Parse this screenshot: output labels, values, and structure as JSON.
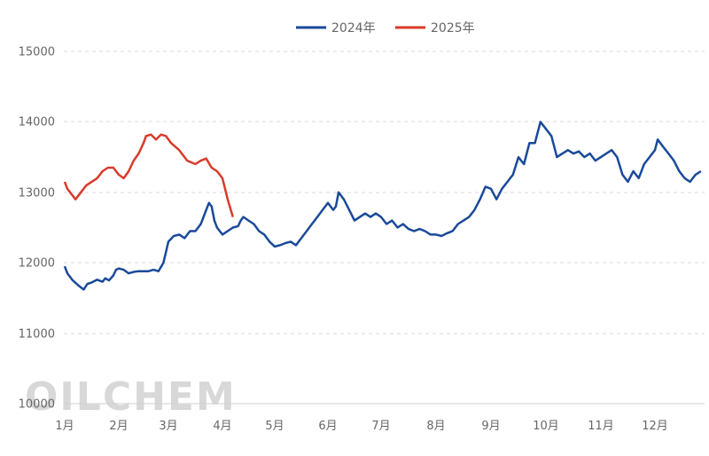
{
  "chart_data": {
    "type": "line",
    "title": "",
    "xlabel": "",
    "ylabel": "",
    "ylim": [
      10000,
      15000
    ],
    "yticks": [
      10000,
      11000,
      12000,
      13000,
      14000,
      15000
    ],
    "months": [
      "1月",
      "2月",
      "3月",
      "4月",
      "5月",
      "6月",
      "7月",
      "8月",
      "9月",
      "10月",
      "11月",
      "12月"
    ],
    "grid": "horizontal dashed",
    "legend_position": "top-center",
    "watermark": "OILCHEM",
    "series": [
      {
        "name": "2024年",
        "color": "#1a4a99",
        "points": [
          [
            1.0,
            11950
          ],
          [
            1.05,
            11850
          ],
          [
            1.15,
            11750
          ],
          [
            1.25,
            11680
          ],
          [
            1.35,
            11620
          ],
          [
            1.42,
            11700
          ],
          [
            1.5,
            11720
          ],
          [
            1.6,
            11760
          ],
          [
            1.7,
            11730
          ],
          [
            1.75,
            11780
          ],
          [
            1.82,
            11750
          ],
          [
            1.9,
            11820
          ],
          [
            1.95,
            11900
          ],
          [
            2.0,
            11920
          ],
          [
            2.1,
            11900
          ],
          [
            2.2,
            11850
          ],
          [
            2.3,
            11870
          ],
          [
            2.4,
            11880
          ],
          [
            2.5,
            11880
          ],
          [
            2.6,
            11880
          ],
          [
            2.7,
            11900
          ],
          [
            2.8,
            11880
          ],
          [
            2.9,
            12000
          ],
          [
            3.0,
            12300
          ],
          [
            3.1,
            12380
          ],
          [
            3.2,
            12400
          ],
          [
            3.3,
            12350
          ],
          [
            3.4,
            12450
          ],
          [
            3.5,
            12450
          ],
          [
            3.6,
            12550
          ],
          [
            3.7,
            12750
          ],
          [
            3.75,
            12850
          ],
          [
            3.8,
            12800
          ],
          [
            3.85,
            12600
          ],
          [
            3.9,
            12500
          ],
          [
            4.0,
            12400
          ],
          [
            4.1,
            12450
          ],
          [
            4.2,
            12500
          ],
          [
            4.3,
            12520
          ],
          [
            4.35,
            12600
          ],
          [
            4.4,
            12650
          ],
          [
            4.5,
            12600
          ],
          [
            4.6,
            12550
          ],
          [
            4.7,
            12450
          ],
          [
            4.8,
            12400
          ],
          [
            4.9,
            12300
          ],
          [
            5.0,
            12230
          ],
          [
            5.1,
            12250
          ],
          [
            5.2,
            12280
          ],
          [
            5.3,
            12300
          ],
          [
            5.4,
            12250
          ],
          [
            5.5,
            12350
          ],
          [
            5.6,
            12450
          ],
          [
            5.7,
            12550
          ],
          [
            5.8,
            12650
          ],
          [
            5.9,
            12750
          ],
          [
            6.0,
            12850
          ],
          [
            6.1,
            12750
          ],
          [
            6.15,
            12800
          ],
          [
            6.2,
            13000
          ],
          [
            6.3,
            12900
          ],
          [
            6.4,
            12750
          ],
          [
            6.5,
            12600
          ],
          [
            6.6,
            12650
          ],
          [
            6.7,
            12700
          ],
          [
            6.8,
            12650
          ],
          [
            6.9,
            12700
          ],
          [
            7.0,
            12650
          ],
          [
            7.1,
            12550
          ],
          [
            7.2,
            12600
          ],
          [
            7.3,
            12500
          ],
          [
            7.4,
            12550
          ],
          [
            7.5,
            12480
          ],
          [
            7.6,
            12450
          ],
          [
            7.7,
            12480
          ],
          [
            7.8,
            12450
          ],
          [
            7.9,
            12400
          ],
          [
            8.0,
            12400
          ],
          [
            8.1,
            12380
          ],
          [
            8.2,
            12420
          ],
          [
            8.3,
            12450
          ],
          [
            8.4,
            12550
          ],
          [
            8.5,
            12600
          ],
          [
            8.6,
            12650
          ],
          [
            8.7,
            12750
          ],
          [
            8.8,
            12900
          ],
          [
            8.9,
            13080
          ],
          [
            9.0,
            13050
          ],
          [
            9.1,
            12900
          ],
          [
            9.2,
            13050
          ],
          [
            9.3,
            13150
          ],
          [
            9.4,
            13250
          ],
          [
            9.5,
            13500
          ],
          [
            9.6,
            13400
          ],
          [
            9.7,
            13700
          ],
          [
            9.8,
            13700
          ],
          [
            9.9,
            14000
          ],
          [
            10.0,
            13900
          ],
          [
            10.1,
            13800
          ],
          [
            10.2,
            13500
          ],
          [
            10.3,
            13550
          ],
          [
            10.4,
            13600
          ],
          [
            10.5,
            13550
          ],
          [
            10.6,
            13580
          ],
          [
            10.7,
            13500
          ],
          [
            10.8,
            13550
          ],
          [
            10.9,
            13450
          ],
          [
            11.0,
            13500
          ],
          [
            11.1,
            13550
          ],
          [
            11.2,
            13600
          ],
          [
            11.3,
            13500
          ],
          [
            11.4,
            13250
          ],
          [
            11.5,
            13150
          ],
          [
            11.6,
            13300
          ],
          [
            11.7,
            13200
          ],
          [
            11.8,
            13400
          ],
          [
            11.9,
            13500
          ],
          [
            12.0,
            13600
          ],
          [
            12.05,
            13750
          ],
          [
            12.15,
            13650
          ],
          [
            12.25,
            13550
          ],
          [
            12.35,
            13450
          ],
          [
            12.45,
            13300
          ],
          [
            12.55,
            13200
          ],
          [
            12.65,
            13150
          ],
          [
            12.75,
            13250
          ],
          [
            12.85,
            13300
          ]
        ]
      },
      {
        "name": "2025年",
        "color": "#d93a2b",
        "points": [
          [
            1.0,
            13150
          ],
          [
            1.05,
            13050
          ],
          [
            1.12,
            12980
          ],
          [
            1.2,
            12900
          ],
          [
            1.3,
            13000
          ],
          [
            1.4,
            13100
          ],
          [
            1.5,
            13150
          ],
          [
            1.6,
            13200
          ],
          [
            1.7,
            13300
          ],
          [
            1.8,
            13350
          ],
          [
            1.9,
            13350
          ],
          [
            2.0,
            13250
          ],
          [
            2.1,
            13200
          ],
          [
            2.2,
            13300
          ],
          [
            2.3,
            13450
          ],
          [
            2.4,
            13550
          ],
          [
            2.5,
            13700
          ],
          [
            2.55,
            13800
          ],
          [
            2.65,
            13820
          ],
          [
            2.75,
            13750
          ],
          [
            2.85,
            13820
          ],
          [
            2.95,
            13800
          ],
          [
            3.05,
            13700
          ],
          [
            3.2,
            13600
          ],
          [
            3.35,
            13450
          ],
          [
            3.5,
            13400
          ],
          [
            3.6,
            13450
          ],
          [
            3.7,
            13480
          ],
          [
            3.8,
            13350
          ],
          [
            3.9,
            13300
          ],
          [
            4.0,
            13200
          ],
          [
            4.1,
            12900
          ],
          [
            4.2,
            12650
          ]
        ]
      }
    ]
  }
}
